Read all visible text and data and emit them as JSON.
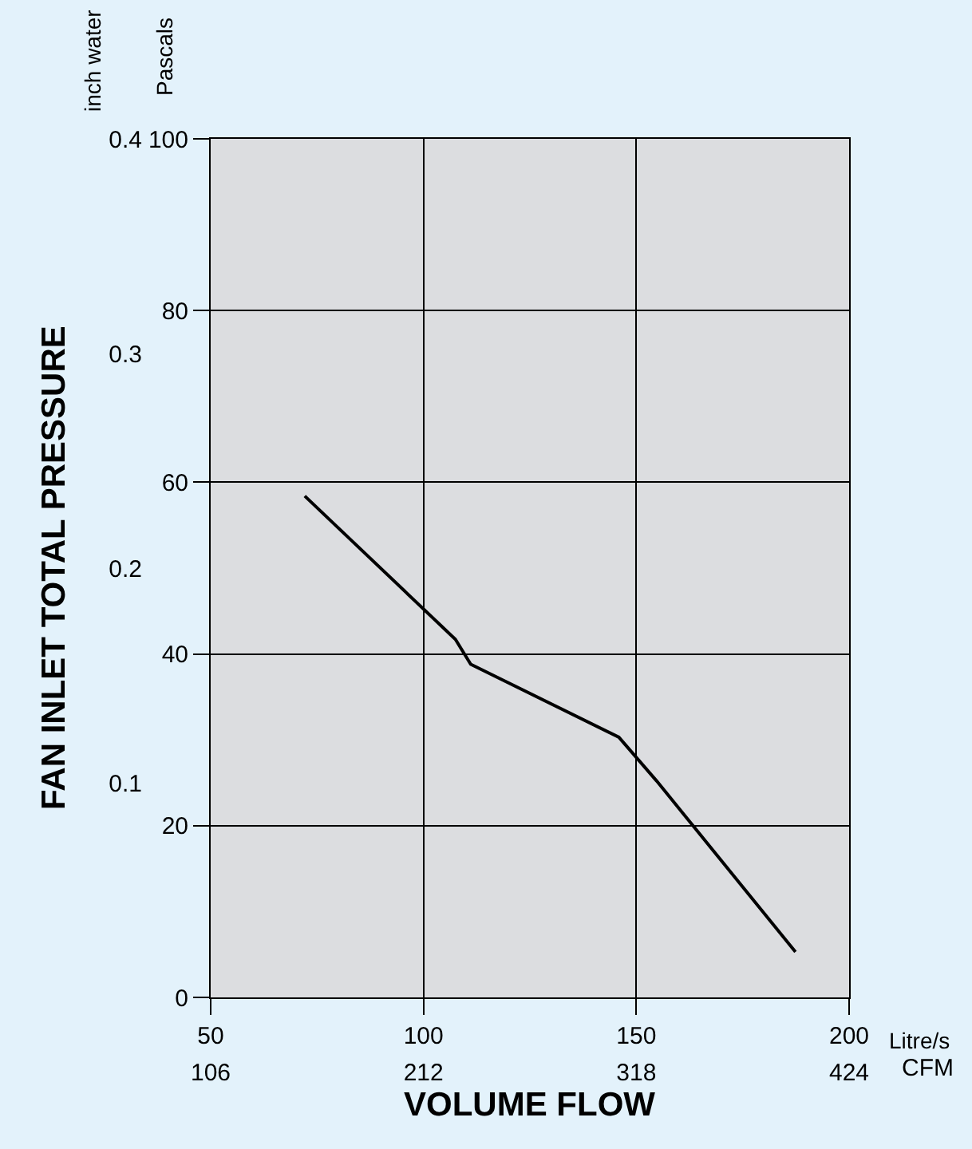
{
  "chart_data": {
    "type": "line",
    "xlabel": "VOLUME FLOW",
    "ylabel": "FAN INLET TOTAL PRESSURE",
    "x2label": "CFM",
    "annotations": [
      "inch water",
      "Pascals",
      "Litre/s"
    ],
    "x": [
      72.1,
      107.5,
      111.1,
      145.9,
      154.8,
      187.4
    ],
    "series": [
      {
        "color": "#000000",
        "axis": "y2",
        "values": [
          58.4,
          41.7,
          38.8,
          30.3,
          25.2,
          5.3
        ]
      }
    ],
    "xlim": [
      50,
      200
    ],
    "xticks": [
      50,
      100,
      150,
      200
    ],
    "ylim": [
      0,
      0.4
    ],
    "yticks": [
      0.1,
      0.2,
      0.3,
      0.4
    ],
    "y2lim": [
      0,
      100
    ],
    "y2ticks": [
      0,
      20,
      40,
      60,
      80,
      100
    ],
    "x2lim": [
      106,
      424
    ],
    "x2ticks": [
      106,
      212,
      318,
      424
    ],
    "grid": true,
    "marker": "none",
    "line_style": "solid"
  }
}
